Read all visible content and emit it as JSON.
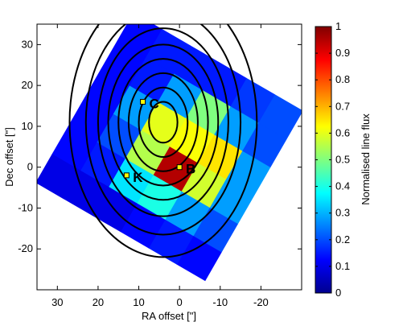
{
  "chart_data": {
    "type": "heatmap",
    "title": "",
    "xlabel": "RA offset [\"]",
    "ylabel": "Dec offset [\"]",
    "xlim": [
      35,
      -30
    ],
    "ylim": [
      -30,
      35
    ],
    "xticks": [
      30,
      20,
      10,
      0,
      -10,
      -20
    ],
    "yticks": [
      30,
      20,
      10,
      0,
      -10,
      -20
    ],
    "grid": false,
    "colorbar": {
      "label": "Normalised line flux",
      "range": [
        0,
        1
      ],
      "ticks": [
        "0",
        "0.1",
        "0.2",
        "0.3",
        "0.4",
        "0.5",
        "0.6",
        "0.7",
        "0.8",
        "0.9",
        "1"
      ],
      "colormap": "jet"
    },
    "pixel_grid": {
      "rows": 6,
      "cols": 6,
      "pixel_size_arcsec": 8.0,
      "rotation_deg": 30,
      "center": [
        2.5,
        5.0
      ],
      "row_order": "top to bottom",
      "values": [
        [
          0.2,
          0.18,
          0.15,
          0.15,
          0.15,
          0.13
        ],
        [
          0.2,
          0.28,
          0.5,
          0.28,
          0.15,
          0.13
        ],
        [
          0.28,
          0.65,
          0.62,
          0.6,
          0.28,
          0.13
        ],
        [
          0.28,
          0.58,
          0.95,
          0.55,
          0.2,
          0.13
        ],
        [
          0.2,
          0.28,
          0.4,
          0.35,
          0.15,
          0.13
        ],
        [
          0.13,
          0.15,
          0.13,
          0.1,
          0.1,
          0.1
        ]
      ]
    },
    "contours": {
      "center": [
        4.0,
        11.0
      ],
      "rx": [
        3.5,
        6.0,
        8.5,
        11.0,
        13.5,
        16.0,
        19.0,
        23.0
      ],
      "ry": [
        5.0,
        8.5,
        12.0,
        15.5,
        19.0,
        23.0,
        27.5,
        33.0
      ],
      "color": "#000000"
    },
    "markers": [
      {
        "label": "C",
        "x": 9.0,
        "y": 16.0
      },
      {
        "label": "B",
        "x": 0.0,
        "y": 0.0
      },
      {
        "label": "K",
        "x": 13.0,
        "y": -2.0
      }
    ]
  }
}
